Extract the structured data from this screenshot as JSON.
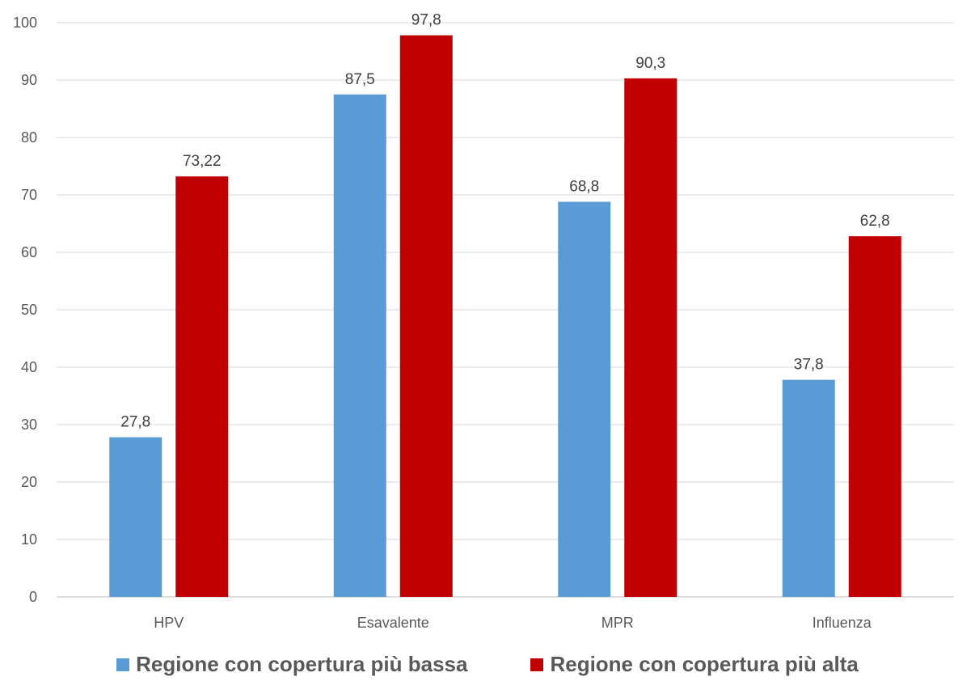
{
  "chart_data": {
    "type": "bar",
    "title": "",
    "xlabel": "",
    "ylabel": "",
    "categories": [
      "HPV",
      "Esavalente",
      "MPR",
      "Influenza"
    ],
    "series": [
      {
        "name": "Regione con copertura più bassa",
        "color": "#5b9bd5",
        "values": [
          27.8,
          87.5,
          68.8,
          37.8
        ],
        "labels": [
          "27,8",
          "87,5",
          "68,8",
          "37,8"
        ]
      },
      {
        "name": "Regione con copertura più alta",
        "color": "#c00000",
        "values": [
          73.22,
          97.8,
          90.3,
          62.8
        ],
        "labels": [
          "73,22",
          "97,8",
          "90,3",
          "62,8"
        ]
      }
    ],
    "ylim": [
      0,
      100
    ],
    "yticks": [
      0,
      10,
      20,
      30,
      40,
      50,
      60,
      70,
      80,
      90,
      100
    ],
    "grid": true,
    "legend_position": "bottom"
  },
  "legend": {
    "items": [
      {
        "label": "Regione con copertura più bassa",
        "color": "#5b9bd5"
      },
      {
        "label": "Regione con copertura più alta",
        "color": "#c00000"
      }
    ]
  }
}
